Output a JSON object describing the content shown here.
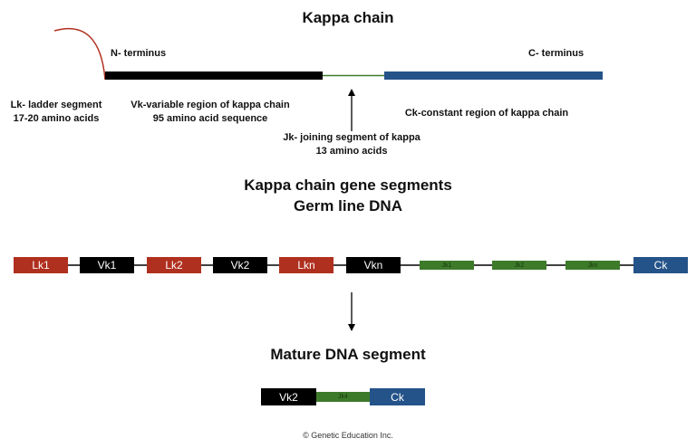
{
  "title": "Kappa chain",
  "n_terminus": "N- terminus",
  "c_terminus": "C- terminus",
  "lk_label": [
    "Lk- ladder segment",
    "17-20 amino acids"
  ],
  "vk_label": [
    "Vk-variable region of kappa chain",
    "95 amino acid sequence"
  ],
  "ck_label": "Ck-constant region of kappa chain",
  "jk_label": [
    "Jk- joining segment of kappa",
    "13 amino acids"
  ],
  "section2_title": [
    "Kappa chain gene segments",
    "Germ line DNA"
  ],
  "germline_segments": [
    "Lk1",
    "Vk1",
    "Lk2",
    "Vk2",
    "Lkn",
    "Vkn",
    "Jk1",
    "Jk2",
    "Jkn",
    "Ck"
  ],
  "section3_title": "Mature DNA segment",
  "mature_segments": [
    "Vk2",
    "Jk4",
    "Ck"
  ],
  "copyright": "© Genetic Education Inc.",
  "colors": {
    "leader": "#b0301f",
    "variable": "#000000",
    "joining": "#3d7a2a",
    "constant": "#245389"
  }
}
